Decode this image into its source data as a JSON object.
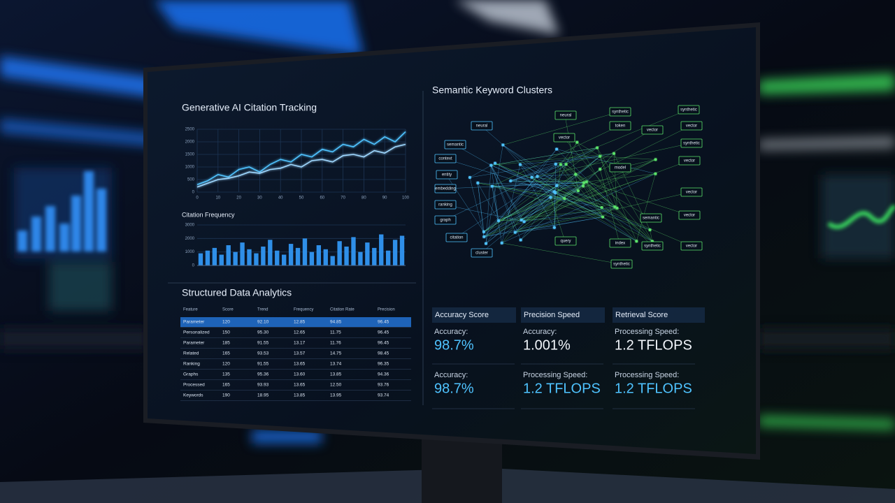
{
  "chart_data": [
    {
      "type": "line",
      "title": "Generative AI Citation Tracking",
      "x": [
        0,
        5,
        10,
        15,
        20,
        25,
        30,
        35,
        40,
        45,
        50,
        55,
        60,
        65,
        70,
        75,
        80,
        85,
        90,
        95,
        100
      ],
      "series": [
        {
          "color": "#4fc3ff",
          "values": [
            300,
            450,
            700,
            600,
            900,
            1000,
            800,
            1100,
            1300,
            1200,
            1500,
            1400,
            1700,
            1600,
            1900,
            1800,
            2100,
            1900,
            2200,
            2000,
            2400
          ]
        },
        {
          "color": "#9fd8ff",
          "values": [
            200,
            350,
            500,
            550,
            650,
            800,
            750,
            900,
            950,
            1100,
            1000,
            1250,
            1300,
            1200,
            1450,
            1500,
            1400,
            1650,
            1550,
            1800,
            1900
          ]
        }
      ],
      "xlim": [
        0,
        100
      ],
      "xticks": [
        0,
        10,
        20,
        30,
        40,
        50,
        60,
        70,
        80,
        90,
        100
      ],
      "ylim": [
        0,
        2500
      ],
      "yticks": [
        0,
        500,
        1000,
        1500,
        2000,
        2500
      ],
      "grid": true
    },
    {
      "type": "bar",
      "title": "Citation Frequency",
      "values": [
        900,
        1100,
        1300,
        800,
        1500,
        1000,
        1700,
        1200,
        900,
        1400,
        1900,
        1100,
        800,
        1600,
        1300,
        2000,
        1000,
        1500,
        1200,
        700,
        1800,
        1400,
        2100,
        1000,
        1700,
        1300,
        2300,
        1100,
        1900,
        2200
      ],
      "color": "#2f8fe8",
      "ylim": [
        0,
        3000
      ],
      "yticks": [
        0,
        1000,
        2000,
        3000
      ],
      "grid": true
    }
  ],
  "table": {
    "title": "Structured Data Analytics",
    "columns": [
      "Feature",
      "Score",
      "Trend",
      "Frequency",
      "Citation Rate",
      "Precision"
    ],
    "rows": [
      [
        "Parameter",
        "120",
        "92.10",
        "12.85",
        "94.85",
        "96.45"
      ],
      [
        "Personalized",
        "150",
        "95.30",
        "12.65",
        "11.75",
        "96.45"
      ],
      [
        "Parameter",
        "185",
        "91.55",
        "13.17",
        "11.76",
        "96.45"
      ],
      [
        "Related",
        "165",
        "93.53",
        "13.57",
        "14.75",
        "98.45"
      ],
      [
        "Ranking",
        "120",
        "91.55",
        "13.65",
        "13.74",
        "96.35"
      ],
      [
        "Graphs",
        "135",
        "95.36",
        "13.60",
        "13.85",
        "94.36"
      ],
      [
        "Processed",
        "165",
        "93.93",
        "13.65",
        "12.50",
        "93.76"
      ],
      [
        "Keywords",
        "190",
        "18.95",
        "13.85",
        "13.95",
        "93.74"
      ]
    ]
  },
  "network": {
    "title": "Semantic Keyword Clusters",
    "nodes": [
      "neural",
      "semantic",
      "context",
      "entity",
      "embedding",
      "ranking",
      "graph",
      "citation",
      "cluster",
      "neural",
      "synthetic",
      "vector",
      "token",
      "model",
      "query",
      "index",
      "synthetic",
      "synthetic",
      "vector",
      "vector",
      "synthetic",
      "vector",
      "vector",
      "semantic",
      "vector",
      "synthetic",
      "vector"
    ]
  },
  "metrics": [
    {
      "header": "Accuracy Score",
      "stats": [
        {
          "label": "Accuracy:",
          "value": "98.7%"
        },
        {
          "label": "Accuracy:",
          "value": "98.7%"
        }
      ]
    },
    {
      "header": "Precision Speed",
      "stats": [
        {
          "label": "Accuracy:",
          "value": "1.001%"
        },
        {
          "label": "Processing Speed:",
          "value": "1.2 TFLOPS"
        }
      ]
    },
    {
      "header": "Retrieval Score",
      "stats": [
        {
          "label": "Processing Speed:",
          "value": "1.2 TFLOPS"
        },
        {
          "label": "Processing Speed:",
          "value": "1.2 TFLOPS"
        }
      ]
    }
  ]
}
